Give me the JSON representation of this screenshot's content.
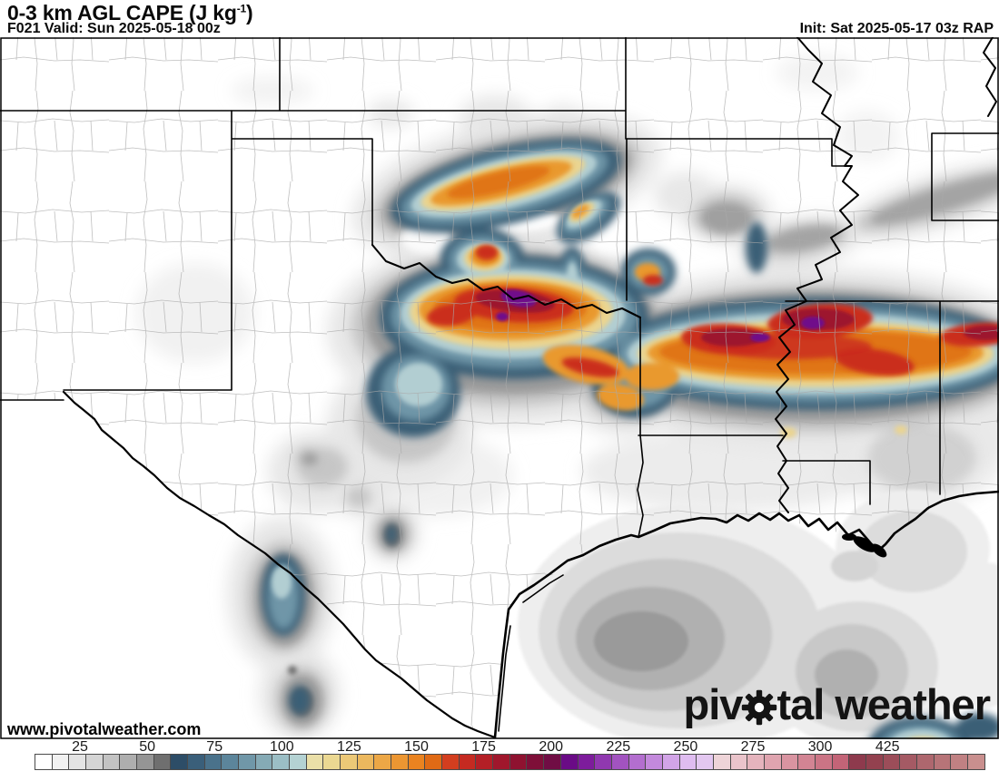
{
  "header": {
    "title_prefix": "0-3 km AGL CAPE (J kg",
    "title_sup": "-1",
    "title_suffix": ")",
    "subtitle": "F021 Valid: Sun 2025-05-18 00z",
    "init": "Init: Sat 2025-05-17 03z RAP"
  },
  "watermark": "www.pivotalweather.com",
  "logo": {
    "part1": "piv",
    "part2": "tal weather",
    "color": "#141414"
  },
  "colorbar": {
    "tick_labels": [
      "25",
      "50",
      "75",
      "100",
      "125",
      "150",
      "175",
      "200",
      "225",
      "250",
      "275",
      "300",
      "425"
    ],
    "border_color": "#4a4a4a",
    "cells": [
      "#ffffff",
      "#f1f1f1",
      "#e4e4e4",
      "#d5d5d5",
      "#c3c3c3",
      "#aeaeae",
      "#959595",
      "#6f6f6f",
      "#2d4d67",
      "#3a5f7a",
      "#4a728b",
      "#5c859b",
      "#7097a8",
      "#85aab5",
      "#9bbec5",
      "#b4d2d3",
      "#eadfa8",
      "#ebd892",
      "#ecc877",
      "#ecb85e",
      "#eca746",
      "#ec9632",
      "#ea8320",
      "#e06a15",
      "#d33e1f",
      "#c52a21",
      "#b41f26",
      "#a0172c",
      "#8f1230",
      "#7e0f38",
      "#700d44",
      "#6a0b86",
      "#7d1c9c",
      "#9038b0",
      "#a253c0",
      "#b36ecf",
      "#c389dc",
      "#d2a4e7",
      "#dfbcf0",
      "#e3c7f0",
      "#eed4d8",
      "#eac4cb",
      "#e5b4bd",
      "#dfa4af",
      "#d994a1",
      "#d28493",
      "#cb7485",
      "#c36477",
      "#8e3a4d",
      "#93414f",
      "#9c4d59",
      "#a55a64",
      "#ae676e",
      "#b77478",
      "#c08183",
      "#c98f8e"
    ]
  }
}
